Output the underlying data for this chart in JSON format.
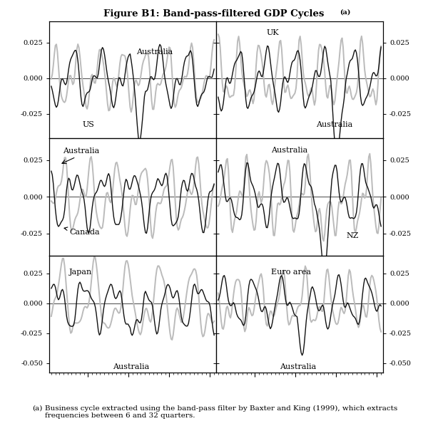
{
  "title": "Figure B1: Band-pass-filtered GDP Cycles",
  "title_superscript": "(a)",
  "footnote_label": "(a)",
  "footnote_text": "Business cycle extracted using the band-pass filter by Baxter and King (1999), which extracts\nfrequencies between 6 and 32 quarters.",
  "subplot_labels": [
    [
      "US",
      "UK"
    ],
    [
      "Canada",
      "NZ"
    ],
    [
      "Japan",
      "Euro area"
    ]
  ],
  "xlim": [
    1961.5,
    2002.5
  ],
  "xticks": [
    1971,
    1981,
    1991,
    2001
  ],
  "ylim_row0": [
    -0.042,
    0.04
  ],
  "ylim_row1": [
    -0.04,
    0.04
  ],
  "ylim_row2": [
    -0.058,
    0.04
  ],
  "yticks_row0": [
    -0.025,
    0.0,
    0.025
  ],
  "yticks_row1": [
    -0.025,
    0.0,
    0.025
  ],
  "yticks_row2": [
    -0.05,
    -0.025,
    0.0,
    0.025
  ],
  "aus_color": "#111111",
  "other_color": "#bbbbbb",
  "lw_aus": 1.0,
  "lw_other": 1.4,
  "bg_color": "#ffffff"
}
